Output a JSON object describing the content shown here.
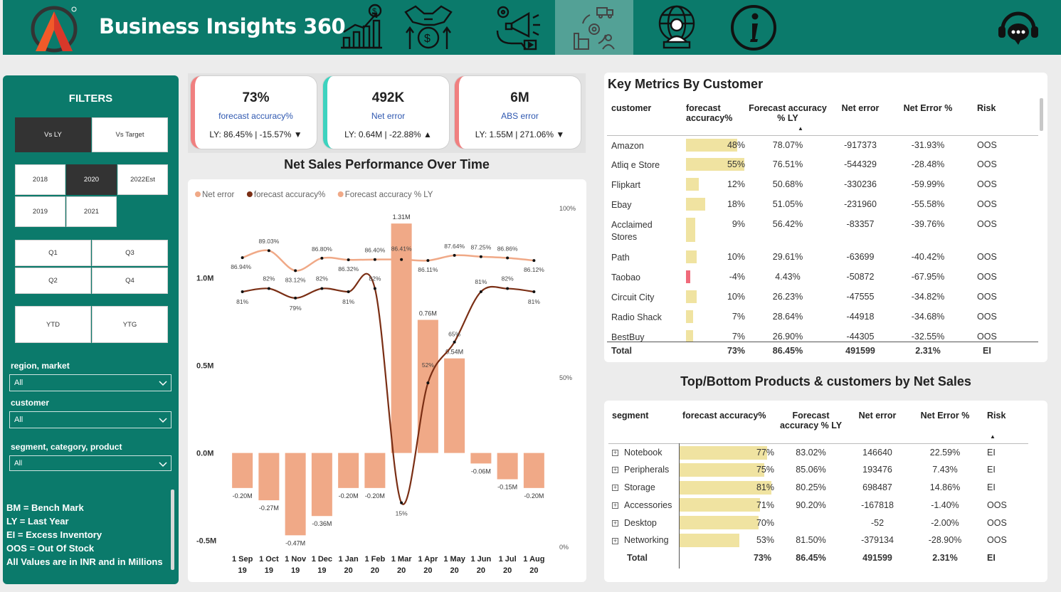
{
  "app": {
    "title": "Business Insights 360"
  },
  "nav": [
    {
      "icon": "finance-chart-icon"
    },
    {
      "icon": "sales-handshake-icon"
    },
    {
      "icon": "marketing-megaphone-icon"
    },
    {
      "icon": "supply-chain-icon",
      "active": true
    },
    {
      "icon": "executive-globe-icon"
    },
    {
      "icon": "info-icon"
    }
  ],
  "filters": {
    "title": "FILTERS",
    "compare": [
      "Vs LY",
      "Vs Target"
    ],
    "years": [
      "2018",
      "2020",
      "2022Est",
      "2019",
      "2021"
    ],
    "quarters": [
      "Q1",
      "Q3",
      "Q2",
      "Q4"
    ],
    "periods": [
      "YTD",
      "YTG"
    ],
    "region_label": "region, market",
    "region_value": "All",
    "customer_label": "customer",
    "customer_value": "All",
    "segment_label": "segment, category, product",
    "segment_value": "All",
    "notes": [
      "BM = Bench Mark",
      "LY = Last Year",
      "EI = Excess Inventory",
      "OOS = Out Of Stock",
      "All Values are in INR and in Millions"
    ]
  },
  "kpis": [
    {
      "value": "73%",
      "label": "forecast accuracy%",
      "ly": "LY: 86.45% | -15.57%",
      "arrow": "▼",
      "color": "#f08080"
    },
    {
      "value": "492K",
      "label": "Net error",
      "ly": "LY: 0.64M | -22.88%",
      "arrow": "▲",
      "color": "#3dd3bf"
    },
    {
      "value": "6M",
      "label": "ABS error",
      "ly": "LY: 1.55M | 271.06%",
      "arrow": "▼",
      "color": "#f08080"
    }
  ],
  "chart": {
    "title": "Net Sales Performance Over Time",
    "legend": [
      "Net error",
      "forecast accuracy%",
      "Forecast accuracy % LY"
    ],
    "y_left_ticks": [
      "1.0M",
      "0.5M",
      "0.0M",
      "-0.5M"
    ],
    "y_right_ticks": [
      "100%",
      "50%",
      "0%"
    ]
  },
  "chart_data": {
    "type": "bar",
    "categories": [
      "1 Sep 19",
      "1 Oct 19",
      "1 Nov 19",
      "1 Dec 19",
      "1 Jan 20",
      "1 Feb 20",
      "1 Mar 20",
      "1 Apr 20",
      "1 May 20",
      "1 Jun 20",
      "1 Jul 20",
      "1 Aug 20"
    ],
    "x_top": [
      "1 Sep",
      "1 Oct",
      "1 Nov",
      "1 Dec",
      "1 Jan",
      "1 Feb",
      "1 Mar",
      "1 Apr",
      "1 May",
      "1 Jun",
      "1 Jul",
      "1 Aug"
    ],
    "x_bottom": [
      "19",
      "19",
      "19",
      "19",
      "20",
      "20",
      "20",
      "20",
      "20",
      "20",
      "20",
      "20"
    ],
    "ylim": [
      -0.55,
      1.4
    ],
    "y2lim": [
      0,
      100
    ],
    "series": [
      {
        "name": "Net error",
        "type": "bar",
        "values": [
          -0.2,
          -0.27,
          -0.47,
          -0.36,
          -0.2,
          -0.2,
          1.31,
          0.76,
          0.54,
          -0.06,
          -0.15,
          -0.2
        ],
        "labels": [
          "-0.20M",
          "-0.27M",
          "-0.47M",
          "-0.36M",
          "-0.20M",
          "-0.20M",
          "1.31M",
          "0.76M",
          "0.54M",
          "-0.06M",
          "-0.15M",
          "-0.20M"
        ]
      },
      {
        "name": "forecast accuracy%",
        "type": "line",
        "values": [
          81,
          82,
          79,
          82,
          81,
          82,
          15,
          52,
          65,
          81,
          82,
          81
        ],
        "labels": [
          "81%",
          "82%",
          "79%",
          "82%",
          "81%",
          "82%",
          "15%",
          "52%",
          "65%",
          "81%",
          "82%",
          "81%"
        ]
      },
      {
        "name": "Forecast accuracy % LY",
        "type": "line",
        "values": [
          86.94,
          89.03,
          83.12,
          86.8,
          86.32,
          86.4,
          86.41,
          86.11,
          87.64,
          87.25,
          86.86,
          86.12
        ],
        "labels": [
          "86.94%",
          "89.03%",
          "83.12%",
          "86.80%",
          "86.32%",
          "86.40%",
          "86.41%",
          "86.11%",
          "87.64%",
          "87.25%",
          "86.86%",
          "86.12%"
        ]
      }
    ]
  },
  "customers": {
    "title": "Key Metrics By Customer",
    "headers": [
      "customer",
      "forecast accuracy%",
      "Forecast accuracy % LY",
      "Net error",
      "Net Error %",
      "Risk"
    ],
    "rows": [
      {
        "name": "Amazon",
        "fa": "48%",
        "fa_val": 48,
        "ly": "78.07%",
        "ne": "-917373",
        "nep": "-31.93%",
        "risk": "OOS"
      },
      {
        "name": "Atliq e Store",
        "fa": "55%",
        "fa_val": 55,
        "ly": "76.51%",
        "ne": "-544329",
        "nep": "-28.48%",
        "risk": "OOS"
      },
      {
        "name": "Flipkart",
        "fa": "12%",
        "fa_val": 12,
        "ly": "50.68%",
        "ne": "-330236",
        "nep": "-59.99%",
        "risk": "OOS"
      },
      {
        "name": "Ebay",
        "fa": "18%",
        "fa_val": 18,
        "ly": "51.05%",
        "ne": "-231960",
        "nep": "-55.58%",
        "risk": "OOS"
      },
      {
        "name": "Acclaimed Stores",
        "fa": "9%",
        "fa_val": 9,
        "ly": "56.42%",
        "ne": "-83357",
        "nep": "-39.76%",
        "risk": "OOS"
      },
      {
        "name": "Path",
        "fa": "10%",
        "fa_val": 10,
        "ly": "29.61%",
        "ne": "-63699",
        "nep": "-40.42%",
        "risk": "OOS"
      },
      {
        "name": "Taobao",
        "fa": "-4%",
        "fa_val": -4,
        "ly": "4.43%",
        "ne": "-50872",
        "nep": "-67.95%",
        "risk": "OOS"
      },
      {
        "name": "Circuit City",
        "fa": "10%",
        "fa_val": 10,
        "ly": "26.23%",
        "ne": "-47555",
        "nep": "-34.82%",
        "risk": "OOS"
      },
      {
        "name": "Radio Shack",
        "fa": "7%",
        "fa_val": 7,
        "ly": "28.64%",
        "ne": "-44918",
        "nep": "-34.68%",
        "risk": "OOS"
      },
      {
        "name": "BestBuy",
        "fa": "7%",
        "fa_val": 7,
        "ly": "26.90%",
        "ne": "-44305",
        "nep": "-32.55%",
        "risk": "OOS"
      }
    ],
    "total": {
      "name": "Total",
      "fa": "73%",
      "ly": "86.45%",
      "ne": "491599",
      "nep": "2.31%",
      "risk": "EI"
    }
  },
  "segments": {
    "title": "Top/Bottom Products & customers by Net Sales",
    "headers": [
      "segment",
      "forecast accuracy%",
      "Forecast accuracy % LY",
      "Net error",
      "Net Error %",
      "Risk"
    ],
    "rows": [
      {
        "name": "Notebook",
        "fa": "77%",
        "fa_val": 77,
        "ly": "83.02%",
        "ne": "146640",
        "nep": "22.59%",
        "risk": "EI"
      },
      {
        "name": "Peripherals",
        "fa": "75%",
        "fa_val": 75,
        "ly": "85.06%",
        "ne": "193476",
        "nep": "7.43%",
        "risk": "EI"
      },
      {
        "name": "Storage",
        "fa": "81%",
        "fa_val": 81,
        "ly": "80.25%",
        "ne": "698487",
        "nep": "14.86%",
        "risk": "EI"
      },
      {
        "name": "Accessories",
        "fa": "71%",
        "fa_val": 71,
        "ly": "90.20%",
        "ne": "-167818",
        "nep": "-1.40%",
        "risk": "OOS"
      },
      {
        "name": "Desktop",
        "fa": "70%",
        "fa_val": 70,
        "ly": "",
        "ne": "-52",
        "nep": "-2.00%",
        "risk": "OOS"
      },
      {
        "name": "Networking",
        "fa": "53%",
        "fa_val": 53,
        "ly": "81.50%",
        "ne": "-379134",
        "nep": "-28.90%",
        "risk": "OOS"
      }
    ],
    "total": {
      "name": "Total",
      "fa": "73%",
      "ly": "86.45%",
      "ne": "491599",
      "nep": "2.31%",
      "risk": "EI"
    }
  },
  "colors": {
    "teal": "#0b7a6b",
    "bar": "#f0a987",
    "line_fa": "#7a2e14",
    "line_ly": "#f0a987",
    "table_bar": "#f0e3a1",
    "neg_bar": "#f06a7a"
  }
}
